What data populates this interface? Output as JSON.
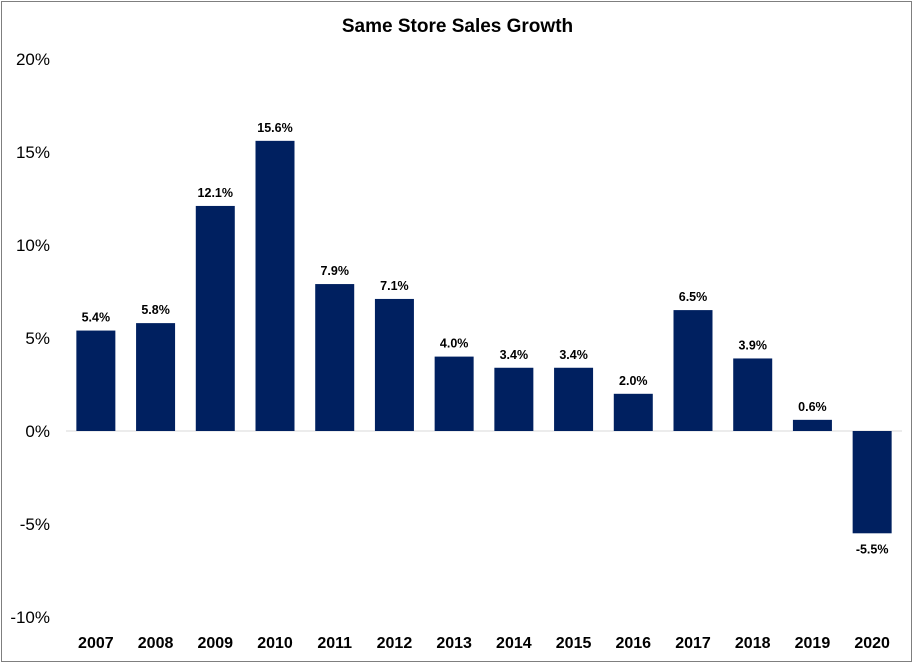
{
  "chart_data": {
    "type": "bar",
    "title": "Same Store Sales Growth",
    "xlabel": "",
    "ylabel": "",
    "categories": [
      "2007",
      "2008",
      "2009",
      "2010",
      "2011",
      "2012",
      "2013",
      "2014",
      "2015",
      "2016",
      "2017",
      "2018",
      "2019",
      "2020"
    ],
    "values": [
      5.4,
      5.8,
      12.1,
      15.6,
      7.9,
      7.1,
      4.0,
      3.4,
      3.4,
      2.0,
      6.5,
      3.9,
      0.6,
      -5.5
    ],
    "data_labels": [
      "5.4%",
      "5.8%",
      "12.1%",
      "15.6%",
      "7.9%",
      "7.1%",
      "4.0%",
      "3.4%",
      "3.4%",
      "2.0%",
      "6.5%",
      "3.9%",
      "0.6%",
      "-5.5%"
    ],
    "ylim": [
      -10,
      20
    ],
    "y_ticks": [
      20,
      15,
      10,
      5,
      0,
      -5,
      -10
    ],
    "y_tick_labels": [
      "20%",
      "15%",
      "10%",
      "5%",
      "0%",
      "-5%",
      "-10%"
    ],
    "grid": false,
    "legend": "none",
    "bar_color": "#002060",
    "baseline_color": "#d9d9d9"
  }
}
